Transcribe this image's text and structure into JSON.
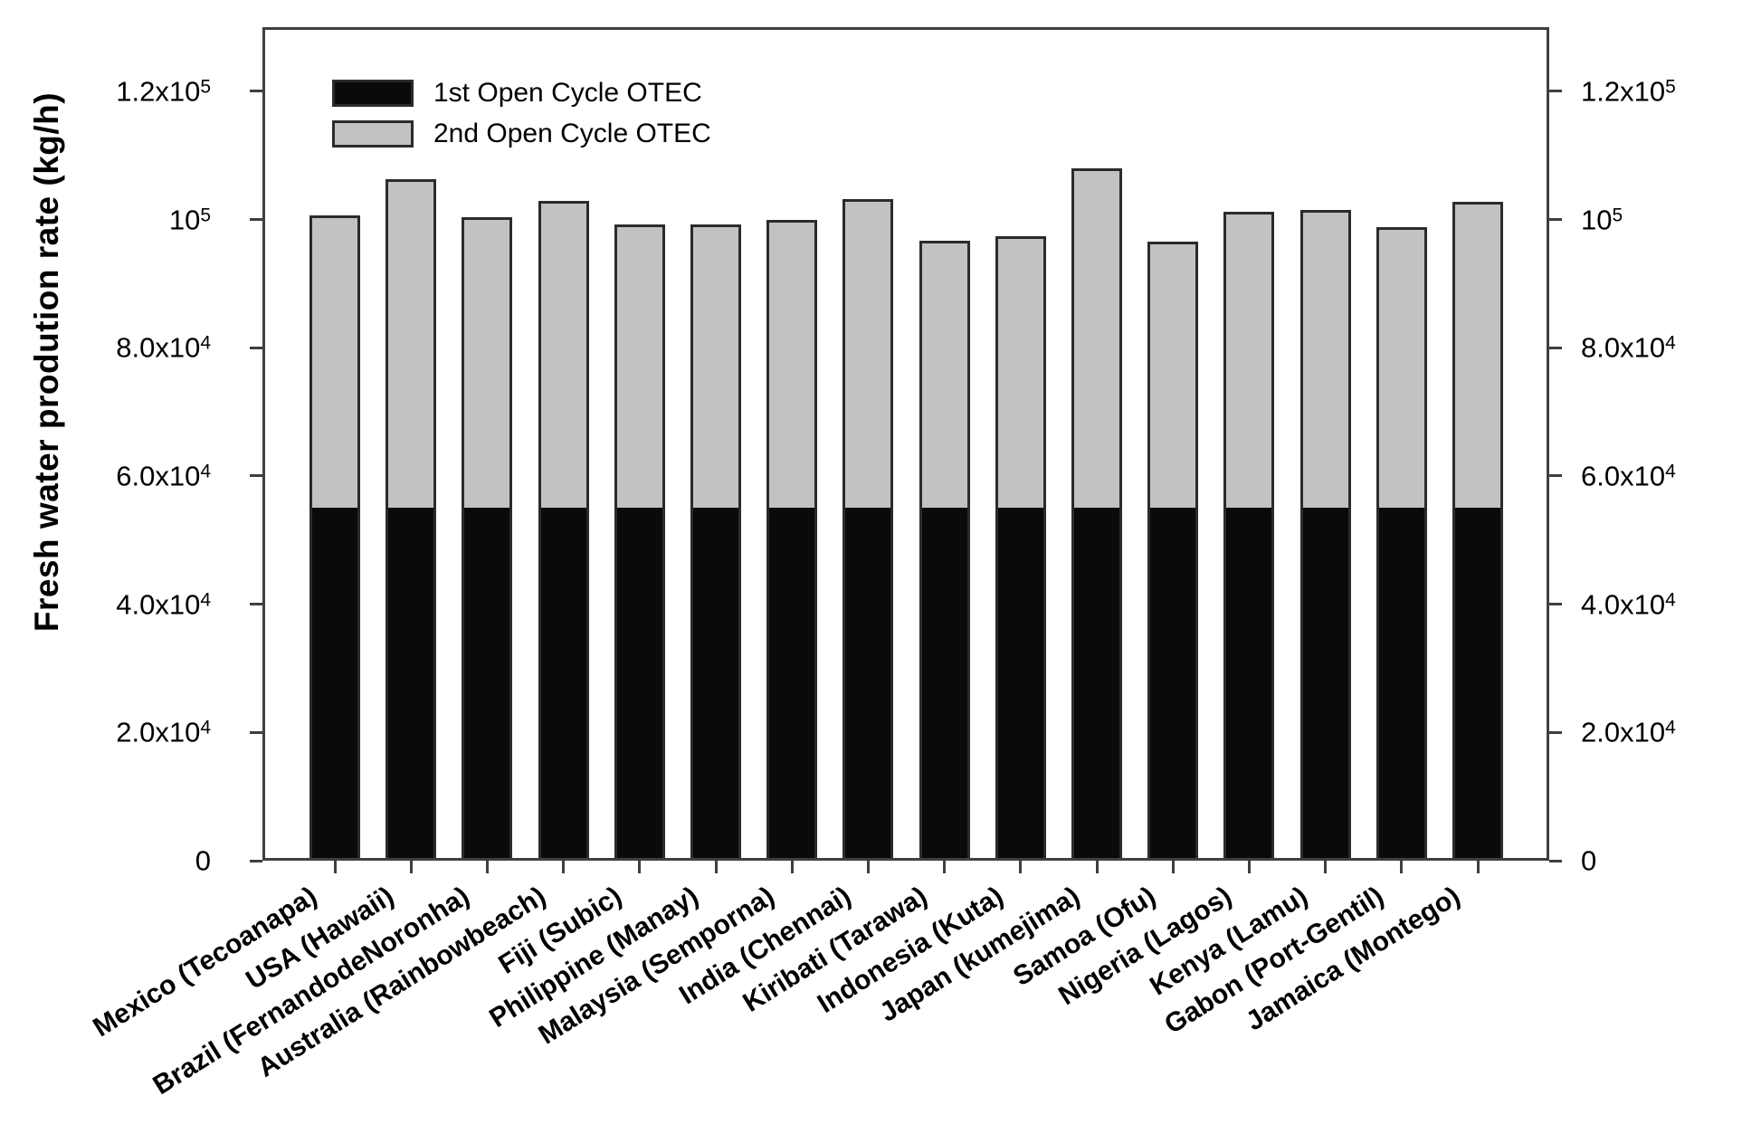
{
  "chart_data": {
    "type": "bar",
    "stacked": true,
    "title": "",
    "xlabel": "",
    "ylabel": "Fresh water prodution rate (kg/h)",
    "ylim": [
      0,
      130000
    ],
    "grid": false,
    "legend_position": "top-left-inside",
    "axis_color": "#3f3f3f",
    "bar_border_color": "#2b2b2b",
    "categories": [
      "Mexico (Tecoanapa)",
      "USA (Hawaii)",
      "Brazil (FernandodeNoronha)",
      "Australia (Rainbowbeach)",
      "Fiji (Subic)",
      "Philippine (Manay)",
      "Malaysia (Semporna)",
      "India (Chennai)",
      "Kiribati (Tarawa)",
      "Indonesia (Kuta)",
      "Japan (kumejima)",
      "Samoa (Ofu)",
      "Nigeria (Lagos)",
      "Kenya (Lamu)",
      "Gabon (Port-Gentil)",
      "Jamaica (Montego)"
    ],
    "series": [
      {
        "name": "1st Open Cycle OTEC",
        "color": "#0a0a0a",
        "values": [
          55000,
          55000,
          55000,
          55000,
          55000,
          55000,
          55000,
          55000,
          55000,
          55000,
          55000,
          55000,
          55000,
          55000,
          55000,
          55000
        ]
      },
      {
        "name": "2nd Open Cycle OTEC",
        "color": "#c2c2c2",
        "values": [
          45600,
          51300,
          45300,
          47900,
          44200,
          44200,
          44900,
          48200,
          41700,
          42400,
          53000,
          41500,
          46200,
          46500,
          43800,
          47800
        ]
      }
    ],
    "stack_totals": [
      100600,
      106300,
      100300,
      102900,
      99200,
      99200,
      99900,
      103200,
      96700,
      97400,
      108000,
      96500,
      101200,
      101500,
      98800,
      102800
    ],
    "yticks": [
      {
        "value": 0,
        "mantissa": "0",
        "exp": ""
      },
      {
        "value": 20000,
        "mantissa": "2.0x10",
        "exp": "4"
      },
      {
        "value": 40000,
        "mantissa": "4.0x10",
        "exp": "4"
      },
      {
        "value": 60000,
        "mantissa": "6.0x10",
        "exp": "4"
      },
      {
        "value": 80000,
        "mantissa": "8.0x10",
        "exp": "4"
      },
      {
        "value": 100000,
        "mantissa": "10",
        "exp": "5"
      },
      {
        "value": 120000,
        "mantissa": "1.2x10",
        "exp": "5"
      }
    ]
  }
}
